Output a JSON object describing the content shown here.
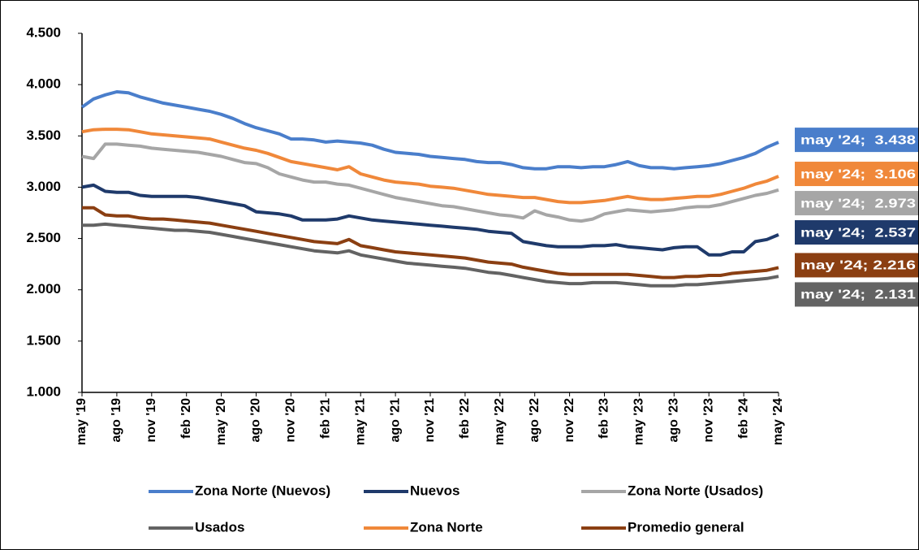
{
  "chart_data": {
    "type": "line",
    "categories": [
      "may '19",
      null,
      null,
      "ago '19",
      null,
      null,
      "nov '19",
      null,
      null,
      "feb '20",
      null,
      null,
      "may '20",
      null,
      null,
      "ago '20",
      null,
      null,
      "nov '20",
      null,
      null,
      "feb '21",
      null,
      null,
      "may '21",
      null,
      null,
      "ago '21",
      null,
      null,
      "nov '21",
      null,
      null,
      "feb '22",
      null,
      null,
      "may '22",
      null,
      null,
      "ago '22",
      null,
      null,
      "nov '22",
      null,
      null,
      "feb '23",
      null,
      null,
      "may '23",
      null,
      null,
      "ago '23",
      null,
      null,
      "nov '23",
      null,
      null,
      "feb '24",
      null,
      null,
      "may '24"
    ],
    "ylim": [
      1000,
      4500
    ],
    "yticks": [
      {
        "value": 1000,
        "label": "1.000"
      },
      {
        "value": 1500,
        "label": "1.500"
      },
      {
        "value": 2000,
        "label": "2.000"
      },
      {
        "value": 2500,
        "label": "2.500"
      },
      {
        "value": 3000,
        "label": "3.000"
      },
      {
        "value": 3500,
        "label": "3.500"
      },
      {
        "value": 4000,
        "label": "4.000"
      },
      {
        "value": 4500,
        "label": "4.500"
      }
    ],
    "grid": false,
    "legend": "bottom",
    "series": [
      {
        "name": "Zona Norte (Nuevos)",
        "color": "#4a7ecb",
        "values": [
          3780,
          3860,
          3900,
          3930,
          3920,
          3880,
          3850,
          3820,
          3800,
          3780,
          3760,
          3740,
          3710,
          3670,
          3620,
          3580,
          3550,
          3520,
          3470,
          3470,
          3460,
          3440,
          3450,
          3440,
          3430,
          3410,
          3370,
          3340,
          3330,
          3320,
          3300,
          3290,
          3280,
          3270,
          3250,
          3240,
          3240,
          3220,
          3190,
          3180,
          3180,
          3200,
          3200,
          3190,
          3200,
          3200,
          3220,
          3250,
          3210,
          3190,
          3190,
          3180,
          3190,
          3200,
          3210,
          3230,
          3260,
          3290,
          3330,
          3390,
          3438
        ],
        "value_labels": [
          null,
          null,
          null,
          null,
          null,
          null,
          null,
          null,
          null,
          null,
          null,
          null,
          null,
          null,
          null,
          null,
          null,
          null,
          null,
          null,
          null,
          null,
          null,
          null,
          null,
          null,
          null,
          null,
          null,
          null,
          null,
          null,
          null,
          null,
          null,
          null,
          null,
          null,
          null,
          null,
          null,
          null,
          null,
          null,
          null,
          null,
          null,
          null,
          null,
          null,
          null,
          null,
          null,
          null,
          null,
          null,
          null,
          null,
          null,
          null,
          "may '24;  3.438"
        ]
      },
      {
        "name": "Nuevos",
        "color": "#1f3a6b",
        "values": [
          3000,
          3020,
          2960,
          2950,
          2950,
          2920,
          2910,
          2910,
          2910,
          2910,
          2900,
          2880,
          2860,
          2840,
          2820,
          2760,
          2750,
          2740,
          2720,
          2680,
          2680,
          2680,
          2690,
          2720,
          2700,
          2680,
          2670,
          2660,
          2650,
          2640,
          2630,
          2620,
          2610,
          2600,
          2590,
          2570,
          2560,
          2550,
          2470,
          2450,
          2430,
          2420,
          2420,
          2420,
          2430,
          2430,
          2440,
          2420,
          2410,
          2400,
          2390,
          2410,
          2420,
          2420,
          2340,
          2340,
          2370,
          2370,
          2470,
          2490,
          2537
        ],
        "value_labels": [
          null,
          null,
          null,
          null,
          null,
          null,
          null,
          null,
          null,
          null,
          null,
          null,
          null,
          null,
          null,
          null,
          null,
          null,
          null,
          null,
          null,
          null,
          null,
          null,
          null,
          null,
          null,
          null,
          null,
          null,
          null,
          null,
          null,
          null,
          null,
          null,
          null,
          null,
          null,
          null,
          null,
          null,
          null,
          null,
          null,
          null,
          null,
          null,
          null,
          null,
          null,
          null,
          null,
          null,
          null,
          null,
          null,
          null,
          null,
          null,
          "may '24;  2.537"
        ]
      },
      {
        "name": "Zona Norte (Usados)",
        "color": "#a6a6a6",
        "values": [
          3300,
          3280,
          3420,
          3420,
          3410,
          3400,
          3380,
          3370,
          3360,
          3350,
          3340,
          3320,
          3300,
          3270,
          3240,
          3230,
          3190,
          3130,
          3100,
          3070,
          3050,
          3050,
          3030,
          3020,
          2990,
          2960,
          2930,
          2900,
          2880,
          2860,
          2840,
          2820,
          2810,
          2790,
          2770,
          2750,
          2730,
          2720,
          2700,
          2770,
          2730,
          2710,
          2680,
          2670,
          2690,
          2740,
          2760,
          2780,
          2770,
          2760,
          2770,
          2780,
          2800,
          2810,
          2810,
          2830,
          2860,
          2890,
          2920,
          2940,
          2973
        ],
        "value_labels": [
          null,
          null,
          null,
          null,
          null,
          null,
          null,
          null,
          null,
          null,
          null,
          null,
          null,
          null,
          null,
          null,
          null,
          null,
          null,
          null,
          null,
          null,
          null,
          null,
          null,
          null,
          null,
          null,
          null,
          null,
          null,
          null,
          null,
          null,
          null,
          null,
          null,
          null,
          null,
          null,
          null,
          null,
          null,
          null,
          null,
          null,
          null,
          null,
          null,
          null,
          null,
          null,
          null,
          null,
          null,
          null,
          null,
          null,
          null,
          null,
          "may '24;  2.973"
        ]
      },
      {
        "name": "Usados",
        "color": "#636363",
        "values": [
          2630,
          2630,
          2640,
          2630,
          2620,
          2610,
          2600,
          2590,
          2580,
          2580,
          2570,
          2560,
          2540,
          2520,
          2500,
          2480,
          2460,
          2440,
          2420,
          2400,
          2380,
          2370,
          2360,
          2380,
          2340,
          2320,
          2300,
          2280,
          2260,
          2250,
          2240,
          2230,
          2220,
          2210,
          2190,
          2170,
          2160,
          2140,
          2120,
          2100,
          2080,
          2070,
          2060,
          2060,
          2070,
          2070,
          2070,
          2060,
          2050,
          2040,
          2040,
          2040,
          2050,
          2050,
          2060,
          2070,
          2080,
          2090,
          2100,
          2110,
          2131
        ],
        "value_labels": [
          null,
          null,
          null,
          null,
          null,
          null,
          null,
          null,
          null,
          null,
          null,
          null,
          null,
          null,
          null,
          null,
          null,
          null,
          null,
          null,
          null,
          null,
          null,
          null,
          null,
          null,
          null,
          null,
          null,
          null,
          null,
          null,
          null,
          null,
          null,
          null,
          null,
          null,
          null,
          null,
          null,
          null,
          null,
          null,
          null,
          null,
          null,
          null,
          null,
          null,
          null,
          null,
          null,
          null,
          null,
          null,
          null,
          null,
          null,
          null,
          "may '24;  2.131"
        ]
      },
      {
        "name": "Zona Norte",
        "color": "#f0883a",
        "values": [
          3540,
          3560,
          3565,
          3565,
          3560,
          3540,
          3520,
          3510,
          3500,
          3490,
          3480,
          3470,
          3440,
          3410,
          3380,
          3360,
          3330,
          3290,
          3250,
          3230,
          3210,
          3190,
          3170,
          3200,
          3130,
          3100,
          3070,
          3050,
          3040,
          3030,
          3010,
          3000,
          2990,
          2970,
          2950,
          2930,
          2920,
          2910,
          2900,
          2900,
          2880,
          2860,
          2850,
          2850,
          2860,
          2870,
          2890,
          2910,
          2890,
          2880,
          2880,
          2890,
          2900,
          2910,
          2910,
          2930,
          2960,
          2990,
          3030,
          3060,
          3106
        ],
        "value_labels": [
          null,
          null,
          null,
          null,
          null,
          null,
          null,
          null,
          null,
          null,
          null,
          null,
          null,
          null,
          null,
          null,
          null,
          null,
          null,
          null,
          null,
          null,
          null,
          null,
          null,
          null,
          null,
          null,
          null,
          null,
          null,
          null,
          null,
          null,
          null,
          null,
          null,
          null,
          null,
          null,
          null,
          null,
          null,
          null,
          null,
          null,
          null,
          null,
          null,
          null,
          null,
          null,
          null,
          null,
          null,
          null,
          null,
          null,
          null,
          null,
          "may '24;  3.106"
        ]
      },
      {
        "name": "Promedio general",
        "color": "#8b3f12",
        "values": [
          2800,
          2800,
          2730,
          2720,
          2720,
          2700,
          2690,
          2690,
          2680,
          2670,
          2660,
          2650,
          2630,
          2610,
          2590,
          2570,
          2550,
          2530,
          2510,
          2490,
          2470,
          2460,
          2450,
          2490,
          2430,
          2410,
          2390,
          2370,
          2360,
          2350,
          2340,
          2330,
          2320,
          2310,
          2290,
          2270,
          2260,
          2250,
          2220,
          2200,
          2180,
          2160,
          2150,
          2150,
          2150,
          2150,
          2150,
          2150,
          2140,
          2130,
          2120,
          2120,
          2130,
          2130,
          2140,
          2140,
          2160,
          2170,
          2180,
          2190,
          2216
        ],
        "value_labels": [
          null,
          null,
          null,
          null,
          null,
          null,
          null,
          null,
          null,
          null,
          null,
          null,
          null,
          null,
          null,
          null,
          null,
          null,
          null,
          null,
          null,
          null,
          null,
          null,
          null,
          null,
          null,
          null,
          null,
          null,
          null,
          null,
          null,
          null,
          null,
          null,
          null,
          null,
          null,
          null,
          null,
          null,
          null,
          null,
          null,
          null,
          null,
          null,
          null,
          null,
          null,
          null,
          null,
          null,
          null,
          null,
          null,
          null,
          null,
          null,
          "may '24; 2.216"
        ]
      }
    ]
  }
}
